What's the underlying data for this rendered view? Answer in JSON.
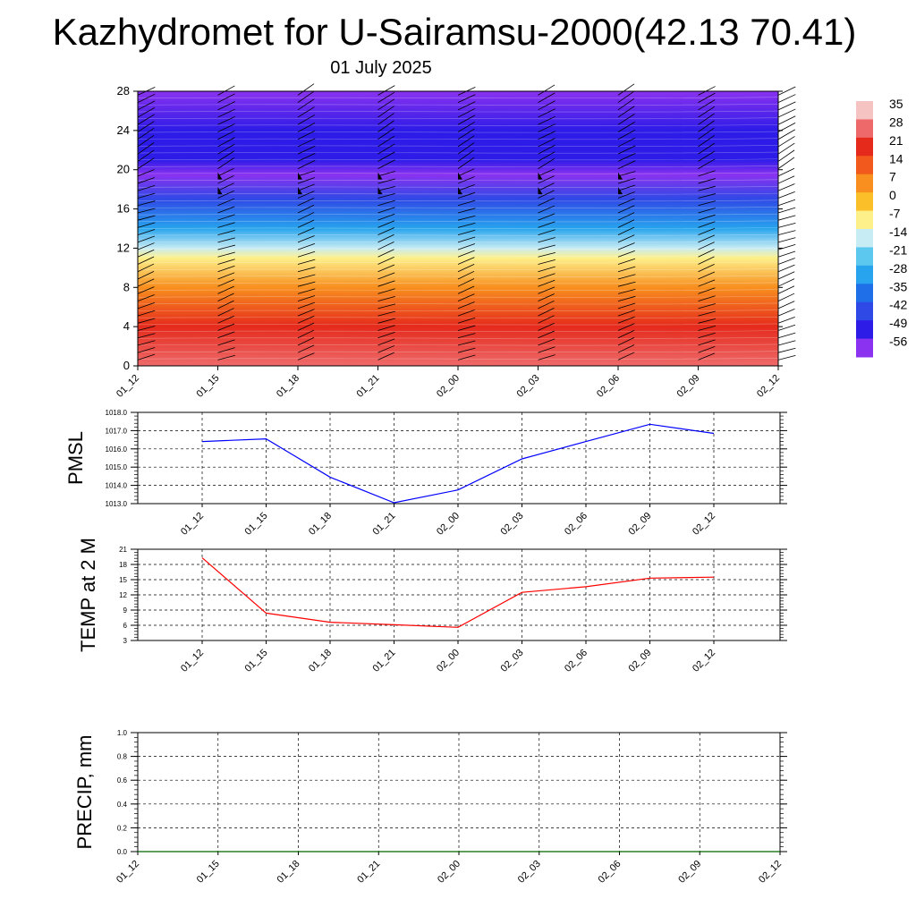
{
  "title": "Kazhydromet for U-Sairamsu-2000(42.13 70.41)",
  "subtitle": "01 July 2025",
  "time_labels": [
    "01_12",
    "01_15",
    "01_18",
    "01_21",
    "02_00",
    "02_03",
    "02_06",
    "02_09",
    "02_12"
  ],
  "chart_data": [
    {
      "type": "heatmap",
      "title": "",
      "xlabel": "",
      "ylabel": "",
      "x": [
        "01_12",
        "01_15",
        "01_18",
        "01_21",
        "02_00",
        "02_03",
        "02_06",
        "02_09",
        "02_12"
      ],
      "ylim": [
        0,
        28
      ],
      "yticks": [
        0,
        4,
        8,
        12,
        16,
        20,
        24,
        28
      ],
      "colorbar": {
        "labels": [
          "35",
          "28",
          "21",
          "14",
          "7",
          "0",
          "-7",
          "-14",
          "-21",
          "-28",
          "-35",
          "-42",
          "-49",
          "-56"
        ],
        "colors": [
          "#f6c3c3",
          "#ee6a6a",
          "#e52a1c",
          "#f15a1c",
          "#f88f1e",
          "#fbbf2a",
          "#fdf08a",
          "#c8ecf4",
          "#5cc8ef",
          "#27a4ed",
          "#1f6fe9",
          "#2f49e6",
          "#2d1be7",
          "#8a32f0"
        ]
      },
      "profile": [
        {
          "height": 0,
          "temp": 28
        },
        {
          "height": 4,
          "temp": 21
        },
        {
          "height": 8,
          "temp": 7
        },
        {
          "height": 11,
          "temp": -7
        },
        {
          "height": 12,
          "temp": -14
        },
        {
          "height": 14,
          "temp": -28
        },
        {
          "height": 17,
          "temp": -42
        },
        {
          "height": 19.5,
          "temp": -56
        },
        {
          "height": 21,
          "temp": -49
        },
        {
          "height": 24,
          "temp": -52
        },
        {
          "height": 28,
          "temp": -53
        }
      ],
      "wind_barbs": true
    },
    {
      "type": "line",
      "title": "",
      "ylabel": "PMSL",
      "xlabel": "",
      "categories": [
        "01_12",
        "01_15",
        "01_18",
        "01_21",
        "02_00",
        "02_03",
        "02_06",
        "02_09",
        "02_12"
      ],
      "ylim": [
        1013.0,
        1018.0
      ],
      "yticks": [
        "1013.0",
        "1014.0",
        "1015.0",
        "1016.0",
        "1017.0",
        "1018.0"
      ],
      "series": [
        {
          "values": [
            1016.4,
            1016.55,
            1014.45,
            1013.05,
            1013.75,
            1015.45,
            1016.4,
            1017.35,
            1016.85
          ],
          "color": "#0000ff"
        }
      ],
      "grid": true
    },
    {
      "type": "line",
      "title": "",
      "ylabel": "TEMP at 2 M",
      "xlabel": "",
      "categories": [
        "01_12",
        "01_15",
        "01_18",
        "01_21",
        "02_00",
        "02_03",
        "02_06",
        "02_09",
        "02_12"
      ],
      "ylim": [
        3,
        21
      ],
      "yticks": [
        "3",
        "6",
        "9",
        "12",
        "15",
        "18",
        "21"
      ],
      "series": [
        {
          "values": [
            19.3,
            8.4,
            6.6,
            6.1,
            5.6,
            12.5,
            13.6,
            15.3,
            15.5
          ],
          "color": "#ff0000"
        }
      ],
      "grid": true
    },
    {
      "type": "line",
      "title": "",
      "ylabel": "PRECIP, mm",
      "xlabel": "",
      "categories": [
        "01_12",
        "01_15",
        "01_18",
        "01_21",
        "02_00",
        "02_03",
        "02_06",
        "02_09",
        "02_12"
      ],
      "ylim": [
        0.0,
        1.0
      ],
      "yticks": [
        "0.0",
        "0.2",
        "0.4",
        "0.6",
        "0.8",
        "1.0"
      ],
      "series": [
        {
          "values": [
            0,
            0,
            0,
            0,
            0,
            0,
            0,
            0,
            0
          ],
          "color": "#006400"
        }
      ],
      "grid": true
    }
  ]
}
